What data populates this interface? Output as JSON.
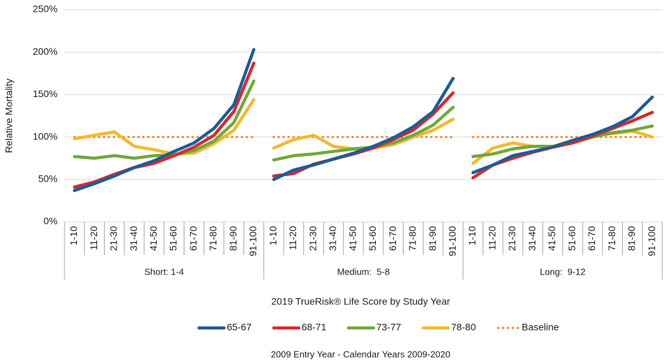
{
  "chart_data": {
    "type": "line",
    "y_label": "Relative Mortality",
    "x_label": "2019 TrueRisk® Life Score by Study Year",
    "footnote": "2009 Entry Year - Calendar Years 2009-2020",
    "groups": [
      "Short: 1-4",
      "Medium:  5-8",
      "Long:  9-12"
    ],
    "categories": [
      "1-10",
      "11-20",
      "21-30",
      "31-40",
      "41-50",
      "51-60",
      "61-70",
      "71-80",
      "81-90",
      "91-100",
      "1-10",
      "11-20",
      "21-30",
      "31-40",
      "41-50",
      "51-60",
      "61-70",
      "71-80",
      "81-90",
      "91-100",
      "1-10",
      "11-20",
      "21-30",
      "31-40",
      "41-50",
      "51-60",
      "61-70",
      "71-80",
      "81-90",
      "91-100"
    ],
    "ylim": [
      0,
      250
    ],
    "yticks": [
      {
        "value": 0,
        "label": "0%"
      },
      {
        "value": 50,
        "label": "50%"
      },
      {
        "value": 100,
        "label": "100%"
      },
      {
        "value": 150,
        "label": "150%"
      },
      {
        "value": 200,
        "label": "200%"
      },
      {
        "value": 250,
        "label": "250%"
      }
    ],
    "grid": true,
    "legend": "bottom",
    "series": [
      {
        "name": "Baseline",
        "color": "#f0873a",
        "style": "dotted",
        "values": [
          100,
          100,
          100,
          100,
          100,
          100,
          100,
          100,
          100,
          100,
          100,
          100,
          100,
          100,
          100,
          100,
          100,
          100,
          100,
          100,
          100,
          100,
          100,
          100,
          100,
          100,
          100,
          100,
          100,
          100
        ]
      },
      {
        "name": "78-80",
        "color": "#f4b92c",
        "style": "solid",
        "values": [
          98,
          102,
          106,
          89,
          85,
          80,
          81,
          92,
          108,
          144,
          87,
          97,
          102,
          89,
          86,
          87,
          91,
          100,
          108,
          121,
          69,
          87,
          93,
          89,
          89,
          96,
          102,
          104,
          107,
          100
        ]
      },
      {
        "name": "73-77",
        "color": "#72a83c",
        "style": "solid",
        "values": [
          77,
          75,
          78,
          75,
          78,
          79,
          84,
          95,
          117,
          166,
          73,
          78,
          80,
          83,
          86,
          88,
          93,
          102,
          114,
          135,
          77,
          80,
          86,
          89,
          89,
          93,
          100,
          105,
          108,
          113
        ]
      },
      {
        "name": "68-71",
        "color": "#d9292e",
        "style": "solid",
        "values": [
          41,
          47,
          56,
          64,
          69,
          78,
          88,
          102,
          130,
          187,
          54,
          57,
          68,
          74,
          80,
          87,
          97,
          108,
          127,
          152,
          52,
          67,
          75,
          82,
          88,
          93,
          101,
          110,
          119,
          129
        ]
      },
      {
        "name": "65-67",
        "color": "#1c5d97",
        "style": "solid",
        "values": [
          37,
          45,
          54,
          64,
          72,
          83,
          93,
          110,
          138,
          203,
          50,
          61,
          67,
          74,
          81,
          89,
          99,
          112,
          130,
          169,
          58,
          67,
          78,
          83,
          88,
          96,
          103,
          112,
          124,
          147
        ]
      }
    ]
  }
}
